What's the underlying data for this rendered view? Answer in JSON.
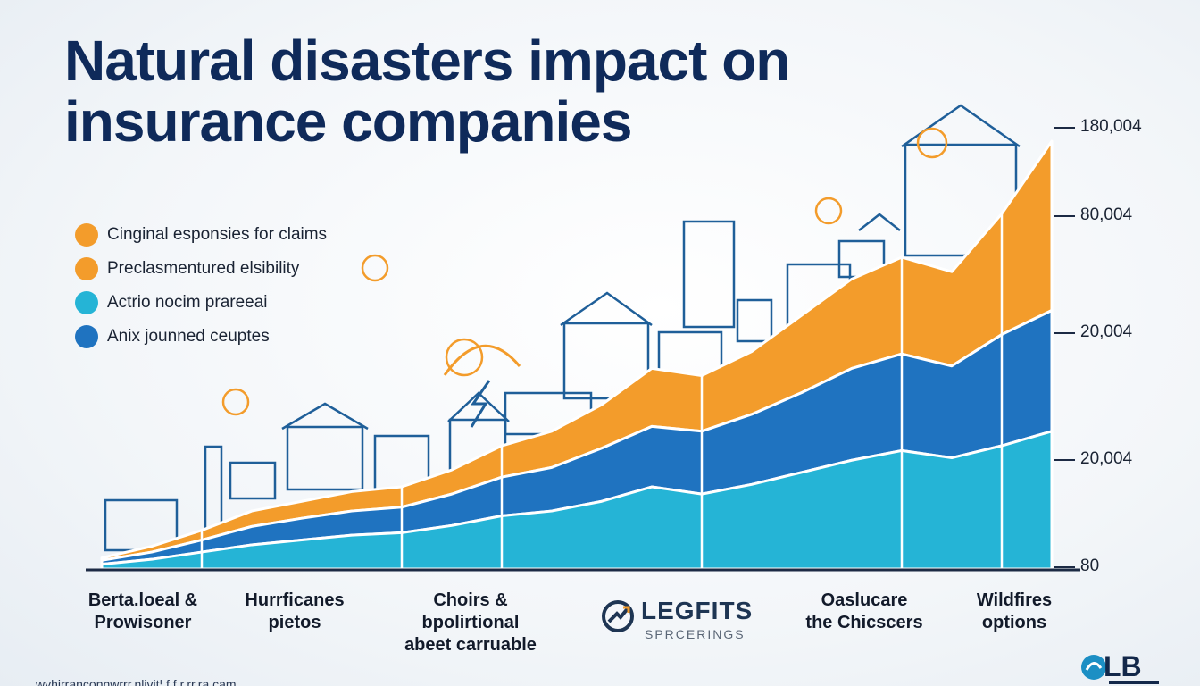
{
  "title": {
    "line1": "Natural disasters impact on",
    "line2": "insurance companies"
  },
  "legend": [
    {
      "label": "Cinginal esponsies for claims",
      "color": "#f39c2b"
    },
    {
      "label": "Preclasmentured elsibility",
      "color": "#f39c2b"
    },
    {
      "label": "Actrio nocim prareeai",
      "color": "#25b4d6"
    },
    {
      "label": "Anix jounned ceuptes",
      "color": "#1f73c0"
    }
  ],
  "categories": [
    {
      "label": "Berta.loeal &\nProwisoner"
    },
    {
      "label": "Hurrficanes\npietos"
    },
    {
      "label": "Choirs &\nbpolirtional\nabeet carruable"
    },
    {
      "label": "Oaslucare\nthe Chicscers"
    },
    {
      "label": "Wildfires\noptions"
    }
  ],
  "logo_center": {
    "name": "LEGFITS",
    "sub": "SPRCERINGS"
  },
  "corner_logo": {
    "text": "LB"
  },
  "footer_url": "wyhirranconnwrrr.nlivit¦.f.f.r.rr.ra.cam",
  "chart_data": {
    "type": "area",
    "stacked": true,
    "title": "Natural disasters impact on insurance companies",
    "y_tick_labels": [
      "180,004",
      "80,004",
      "20,004",
      "20,004",
      "80"
    ],
    "x": [
      1,
      2,
      3,
      4,
      5,
      6,
      7,
      8,
      9,
      10,
      11,
      12,
      13,
      14,
      15,
      16,
      17,
      18,
      19,
      20
    ],
    "series": [
      {
        "name": "Actrio nocim prareeai",
        "color": "#25b4d6",
        "values": [
          1000,
          2000,
          3500,
          5000,
          6000,
          7000,
          7500,
          9000,
          11000,
          12000,
          14000,
          17000,
          15500,
          17500,
          20000,
          22500,
          24500,
          23000,
          25500,
          28500
        ]
      },
      {
        "name": "Anix jounned ceuptes",
        "color": "#1f73c0",
        "values": [
          800,
          1500,
          2500,
          3800,
          4500,
          5000,
          5300,
          6500,
          8000,
          9000,
          11000,
          12500,
          13000,
          14500,
          16500,
          19000,
          20000,
          19000,
          23000,
          25000
        ]
      },
      {
        "name": "Cinginal esponsies for claims",
        "color": "#f39c2b",
        "values": [
          500,
          1200,
          2000,
          3200,
          3500,
          4000,
          4200,
          5000,
          6500,
          7500,
          9000,
          12000,
          11500,
          13000,
          16000,
          18500,
          20000,
          19500,
          25000,
          35000
        ]
      }
    ]
  }
}
